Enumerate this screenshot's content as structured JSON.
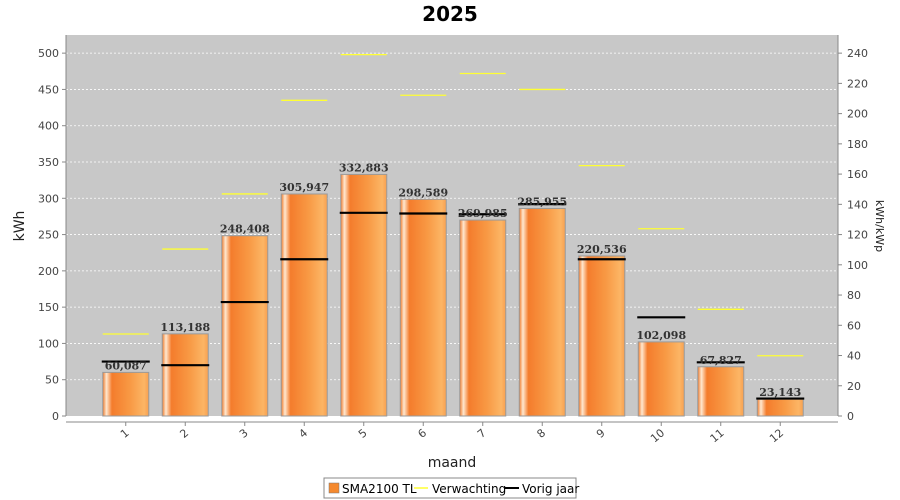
{
  "chart_data": {
    "type": "bar",
    "title": "2025",
    "xlabel": "maand",
    "ylabel": "kWh",
    "y2label": "kWh/kWp",
    "categories": [
      "1",
      "2",
      "3",
      "4",
      "5",
      "6",
      "7",
      "8",
      "9",
      "10",
      "11",
      "12"
    ],
    "ylim": [
      0,
      525
    ],
    "y_ticks": [
      0,
      50,
      100,
      150,
      200,
      250,
      300,
      350,
      400,
      450,
      500
    ],
    "y2lim": [
      0,
      252
    ],
    "y2_ticks": [
      0,
      20,
      40,
      60,
      80,
      100,
      120,
      140,
      160,
      180,
      200,
      220,
      240
    ],
    "grid": true,
    "legend_position": "bottom",
    "series": [
      {
        "name": "SMA2100 TL",
        "kind": "bar",
        "color": "#F5892E",
        "values": [
          60.087,
          113.188,
          248.408,
          305.947,
          332.883,
          298.589,
          269.985,
          285.955,
          220.536,
          102.098,
          67.827,
          23.143
        ],
        "labels": [
          "60,087",
          "113,188",
          "248,408",
          "305,947",
          "332,883",
          "298,589",
          "269,985",
          "285,955",
          "220,536",
          "102,098",
          "67,827",
          "23,143"
        ]
      },
      {
        "name": "Verwachting",
        "kind": "marker",
        "color": "#FFFF33",
        "values": [
          113,
          230,
          306,
          435,
          498,
          442,
          472,
          450,
          345,
          258,
          147,
          83
        ]
      },
      {
        "name": "Vorig jaar",
        "kind": "marker",
        "color": "#000000",
        "values": [
          75,
          70,
          157,
          216,
          280,
          279,
          278,
          292,
          216,
          136,
          74,
          24
        ]
      }
    ]
  }
}
